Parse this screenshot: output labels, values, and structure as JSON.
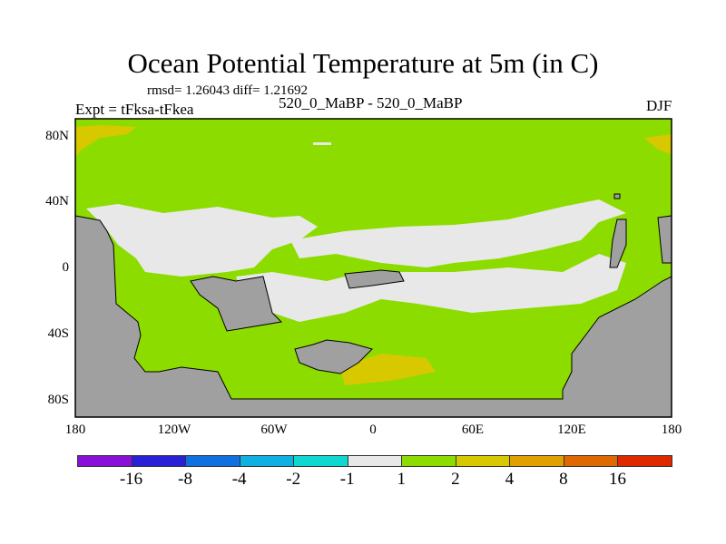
{
  "title": "Ocean Potential Temperature at 5m (in C)",
  "stats": "rmsd= 1.26043 diff= 1.21692",
  "left_label": "Expt = tFksa-tFkea",
  "center_label": "520_0_MaBP - 520_0_MaBP",
  "right_label": "DJF",
  "lat_ticks": [
    "80N",
    "40N",
    "0",
    "40S",
    "80S"
  ],
  "lon_ticks": [
    "180",
    "120W",
    "60W",
    "0",
    "60E",
    "120E",
    "180"
  ],
  "colorbar": {
    "colors": [
      "#8a10d8",
      "#2a20d8",
      "#1070e0",
      "#10b0e0",
      "#10d8d0",
      "#e8e8e8",
      "#8cdc00",
      "#d8c800",
      "#e0a000",
      "#e06800",
      "#e02800"
    ],
    "labels": [
      "-16",
      "-8",
      "-4",
      "-2",
      "-1",
      "1",
      "2",
      "4",
      "8",
      "16"
    ]
  },
  "colors": {
    "land": "#a0a0a0",
    "ocean_1_2": "#8cdc00",
    "ocean_m1_1": "#e8e8e8",
    "ocean_2_4": "#d8c800"
  }
}
